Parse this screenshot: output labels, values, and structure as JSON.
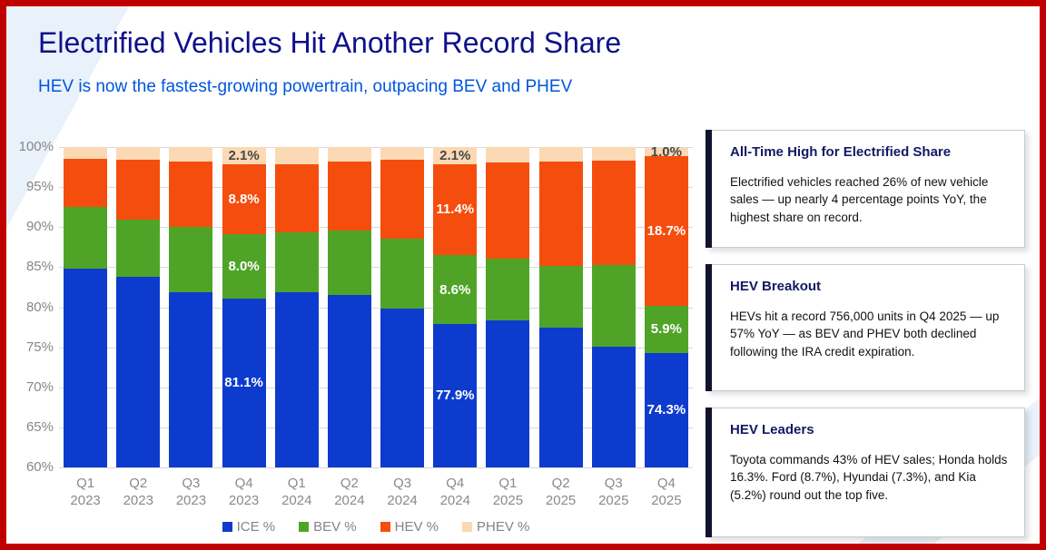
{
  "slide": {
    "title": "Electrified Vehicles Hit Another Record Share",
    "subtitle": "HEV is now the fastest-growing powertrain, outpacing BEV and PHEV"
  },
  "chart_data": {
    "type": "bar",
    "stacked": true,
    "categories": [
      "Q1 2023",
      "Q2 2023",
      "Q3 2023",
      "Q4 2023",
      "Q1 2024",
      "Q2 2024",
      "Q3 2024",
      "Q4 2024",
      "Q1 2025",
      "Q2 2025",
      "Q3 2025",
      "Q4 2025"
    ],
    "series": [
      {
        "name": "ICE %",
        "color": "#0d3bcd",
        "values": [
          84.8,
          83.8,
          81.9,
          81.1,
          81.9,
          81.5,
          79.8,
          77.9,
          78.4,
          77.5,
          75.1,
          74.3
        ]
      },
      {
        "name": "BEV %",
        "color": "#4fa428",
        "values": [
          7.7,
          7.1,
          8.1,
          8.0,
          7.5,
          8.1,
          8.7,
          8.6,
          7.7,
          7.6,
          10.2,
          5.9
        ]
      },
      {
        "name": "HEV %",
        "color": "#f54d0d",
        "values": [
          6.0,
          7.5,
          8.2,
          8.8,
          8.5,
          8.6,
          9.9,
          11.4,
          12.0,
          13.1,
          13.0,
          18.7
        ]
      },
      {
        "name": "PHEV %",
        "color": "#fbd9b4",
        "values": [
          1.5,
          1.6,
          1.8,
          2.1,
          2.1,
          1.8,
          1.6,
          2.1,
          1.9,
          1.8,
          1.7,
          1.0
        ]
      }
    ],
    "bar_labels": {
      "3": [
        "81.1%",
        "8.0%",
        "8.8%",
        "2.1%"
      ],
      "7": [
        "77.9%",
        "8.6%",
        "11.4%",
        "2.1%"
      ],
      "11": [
        "74.3%",
        "5.9%",
        "18.7%",
        "1.0%"
      ]
    },
    "ylim": [
      60,
      100
    ],
    "yticks": [
      "100%",
      "95%",
      "90%",
      "85%",
      "80%",
      "75%",
      "70%",
      "65%",
      "60%"
    ],
    "grid": true,
    "legend_position": "bottom",
    "label_color_on_dark": "#ffffff",
    "label_color_on_light": "#474747"
  },
  "callouts": [
    {
      "heading": "All-Time High for Electrified Share",
      "body": "Electrified vehicles reached 26% of new vehicle sales — up nearly 4 percentage points YoY, the highest share on record."
    },
    {
      "heading": "HEV Breakout",
      "body": "HEVs hit a record 756,000 units in Q4 2025 — up 57% YoY — as BEV and PHEV both declined following the IRA credit expiration."
    },
    {
      "heading": "HEV Leaders",
      "body": "Toyota commands 43% of HEV sales; Honda holds 16.3%. Ford (8.7%), Hyundai (7.3%), and Kia (5.2%) round out the top five."
    }
  ],
  "colors": {
    "slide_border": "#c00000",
    "title": "#0f108c",
    "subtitle": "#0056dd",
    "axis_text": "#868686",
    "gridline": "#d9d9d9",
    "card_accent": "#10142e",
    "card_heading": "#121a63",
    "background_wedge": "#e9f1fa"
  }
}
